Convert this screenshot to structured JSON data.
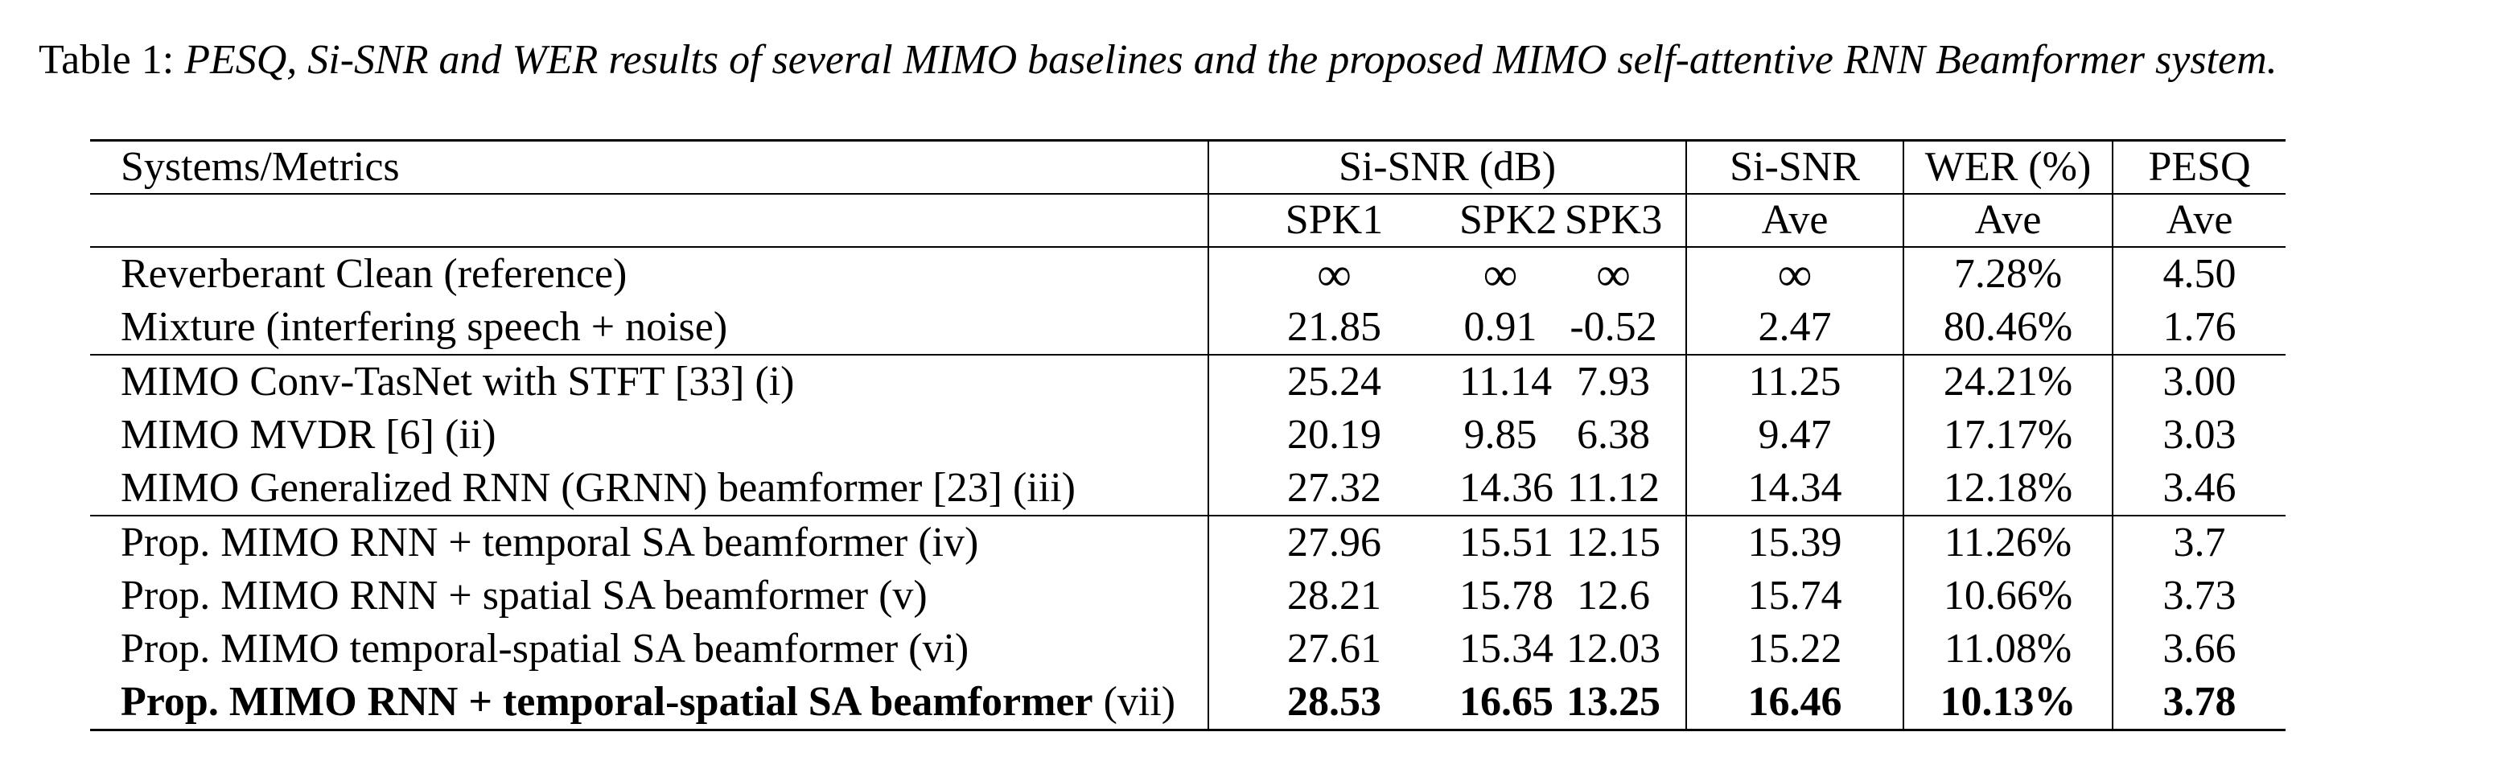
{
  "caption": {
    "label": "Table 1: ",
    "text": "PESQ, Si-SNR and WER results of several MIMO baselines and the proposed MIMO self-attentive RNN Beamformer system."
  },
  "table": {
    "header1": {
      "systems": "Systems/Metrics",
      "sisnr_db": "Si-SNR (dB)",
      "sisnr": "Si-SNR",
      "wer": "WER (%)",
      "pesq": "PESQ"
    },
    "header2": {
      "spk1": "SPK1",
      "spk2": "SPK2",
      "spk3": "SPK3",
      "sisnr_ave": "Ave",
      "wer_ave": "Ave",
      "pesq_ave": "Ave"
    },
    "rows": [
      {
        "system": "Reverberant Clean (reference)",
        "tag": "",
        "spk1": "∞",
        "spk2": "∞",
        "spk3": "∞",
        "sisnr_ave": "∞",
        "wer": "7.28%",
        "pesq": "4.50"
      },
      {
        "system": "Mixture (interfering speech + noise)",
        "tag": "",
        "spk1": "21.85",
        "spk2": "0.91",
        "spk3": "-0.52",
        "sisnr_ave": "2.47",
        "wer": "80.46%",
        "pesq": "1.76"
      },
      {
        "system": "MIMO Conv-TasNet with STFT [33] (i)",
        "tag": "",
        "spk1": "25.24",
        "spk2": "11.14",
        "spk3": "7.93",
        "sisnr_ave": "11.25",
        "wer": "24.21%",
        "pesq": "3.00"
      },
      {
        "system": "MIMO MVDR [6] (ii)",
        "tag": "",
        "spk1": "20.19",
        "spk2": "9.85",
        "spk3": "6.38",
        "sisnr_ave": "9.47",
        "wer": "17.17%",
        "pesq": "3.03"
      },
      {
        "system": "MIMO Generalized RNN (GRNN) beamformer [23] (iii)",
        "tag": "",
        "spk1": "27.32",
        "spk2": "14.36",
        "spk3": "11.12",
        "sisnr_ave": "14.34",
        "wer": "12.18%",
        "pesq": "3.46"
      },
      {
        "system": "Prop. MIMO RNN + temporal SA beamformer (iv)",
        "tag": "",
        "spk1": "27.96",
        "spk2": "15.51",
        "spk3": "12.15",
        "sisnr_ave": "15.39",
        "wer": "11.26%",
        "pesq": "3.7"
      },
      {
        "system": "Prop. MIMO RNN + spatial SA beamformer (v)",
        "tag": "",
        "spk1": "28.21",
        "spk2": "15.78",
        "spk3": "12.6",
        "sisnr_ave": "15.74",
        "wer": "10.66%",
        "pesq": "3.73"
      },
      {
        "system": "Prop. MIMO temporal-spatial SA beamformer (vi)",
        "tag": "",
        "spk1": "27.61",
        "spk2": "15.34",
        "spk3": "12.03",
        "sisnr_ave": "15.22",
        "wer": "11.08%",
        "pesq": "3.66"
      },
      {
        "system": "Prop. MIMO RNN + temporal-spatial SA beamformer",
        "tag": " (vii)",
        "spk1": "28.53",
        "spk2": "16.65",
        "spk3": "13.25",
        "sisnr_ave": "16.46",
        "wer": "10.13%",
        "pesq": "3.78"
      }
    ]
  }
}
